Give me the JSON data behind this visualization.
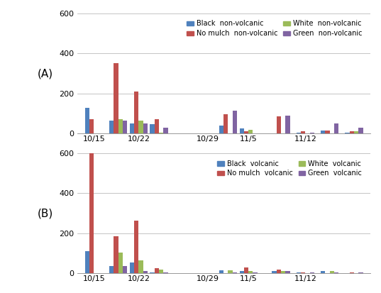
{
  "panel_A": {
    "title": "(A)",
    "legend_labels": [
      "Black  non-volcanic",
      "No mulch  non-volcanic",
      "White  non-volcanic",
      "Green  non-volcanic"
    ],
    "colors": [
      "#4F81BD",
      "#C0504D",
      "#9BBB59",
      "#8064A2"
    ],
    "bar_data": {
      "Black": [
        130,
        65,
        50,
        45,
        0,
        40,
        25,
        0,
        5,
        15,
        5
      ],
      "NoMulch": [
        70,
        350,
        210,
        70,
        0,
        95,
        10,
        85,
        10,
        15,
        10
      ],
      "White": [
        0,
        70,
        65,
        5,
        0,
        0,
        20,
        0,
        0,
        0,
        10
      ],
      "Green": [
        0,
        65,
        50,
        30,
        0,
        115,
        0,
        90,
        5,
        50,
        30
      ]
    }
  },
  "panel_B": {
    "title": "(B)",
    "legend_labels": [
      "Black  volcanic",
      "No mulch  volcanic",
      "White  volcanic",
      "Green  volcanic"
    ],
    "colors": [
      "#4F81BD",
      "#C0504D",
      "#9BBB59",
      "#8064A2"
    ],
    "bar_data": {
      "Black": [
        110,
        35,
        55,
        5,
        0,
        15,
        10,
        10,
        5,
        10,
        2
      ],
      "NoMulch": [
        600,
        185,
        265,
        25,
        0,
        0,
        30,
        20,
        5,
        0,
        3
      ],
      "White": [
        0,
        105,
        65,
        20,
        0,
        15,
        10,
        10,
        0,
        10,
        0
      ],
      "Green": [
        0,
        35,
        10,
        5,
        0,
        5,
        5,
        10,
        5,
        5,
        5
      ]
    }
  },
  "x_group_centers": [
    0,
    3,
    5.5,
    8,
    14,
    16.5,
    19,
    23,
    26,
    29,
    32
  ],
  "xtick_positions": [
    0,
    5.5,
    14,
    19,
    26,
    32
  ],
  "xtick_labels": [
    "10/15",
    "10/22",
    "10/29",
    "11/5",
    "11/12",
    ""
  ],
  "xlim": [
    -2,
    34
  ],
  "ylim": [
    0,
    600
  ],
  "yticks": [
    0,
    200,
    400,
    600
  ],
  "background_color": "#FFFFFF",
  "grid_color": "#BBBBBB"
}
